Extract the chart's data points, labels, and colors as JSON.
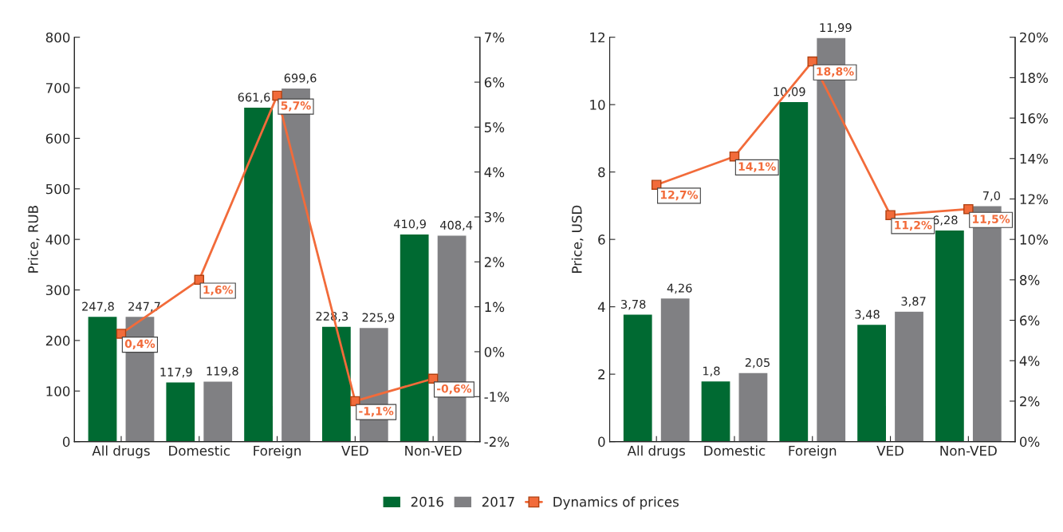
{
  "chart_data": [
    {
      "type": "bar",
      "categories": [
        "All drugs",
        "Domestic",
        "Foreign",
        "VED",
        "Non-VED"
      ],
      "ylabel": "Price, RUB",
      "ylim": [
        0,
        800
      ],
      "yticks": [
        0,
        100,
        200,
        300,
        400,
        500,
        600,
        700,
        800
      ],
      "y2lim": [
        -2,
        7
      ],
      "y2ticks": [
        {
          "value": -2,
          "label": "-2%"
        },
        {
          "value": -1,
          "label": "-1%"
        },
        {
          "value": 0,
          "label": "0%"
        },
        {
          "value": 1,
          "label": "1%"
        },
        {
          "value": 2,
          "label": "2%"
        },
        {
          "value": 3,
          "label": "3%"
        },
        {
          "value": 4,
          "label": "4%"
        },
        {
          "value": 5,
          "label": "5%"
        },
        {
          "value": 6,
          "label": "6%"
        },
        {
          "value": 7,
          "label": "7%"
        }
      ],
      "legend": "bottom",
      "grid": false,
      "series": [
        {
          "name": "2016",
          "color": "#006a32",
          "values": [
            247.8,
            117.9,
            661.6,
            228.3,
            410.9
          ],
          "value_labels": [
            "247,8",
            "117,9",
            "661,6",
            "228,3",
            "410,9"
          ]
        },
        {
          "name": "2017",
          "color": "#808083",
          "values": [
            247.7,
            119.8,
            699.6,
            225.9,
            408.4
          ],
          "value_labels": [
            "247,7",
            "119,8",
            "699,6",
            "225,9",
            "408,4"
          ]
        },
        {
          "name": "Dynamics of prices",
          "type": "line",
          "axis": "y2",
          "color": "#f26b3a",
          "marker": "square",
          "values": [
            0.4,
            1.6,
            5.7,
            -1.1,
            -0.6
          ],
          "value_labels": [
            "0,4%",
            "1,6%",
            "5,7%",
            "-1,1%",
            "-0,6%"
          ]
        }
      ]
    },
    {
      "type": "bar",
      "categories": [
        "All drugs",
        "Domestic",
        "Foreign",
        "VED",
        "Non-VED"
      ],
      "ylabel": "Price, USD",
      "ylim": [
        0,
        12
      ],
      "yticks": [
        0,
        2,
        4,
        6,
        8,
        10,
        12
      ],
      "y2lim": [
        0,
        20
      ],
      "y2ticks": [
        {
          "value": 0,
          "label": "0%"
        },
        {
          "value": 2,
          "label": "2%"
        },
        {
          "value": 4,
          "label": "4%"
        },
        {
          "value": 6,
          "label": "6%"
        },
        {
          "value": 8,
          "label": "8%"
        },
        {
          "value": 10,
          "label": "10%"
        },
        {
          "value": 12,
          "label": "12%"
        },
        {
          "value": 14,
          "label": "14%"
        },
        {
          "value": 16,
          "label": "16%"
        },
        {
          "value": 18,
          "label": "18%"
        },
        {
          "value": 20,
          "label": "20%"
        }
      ],
      "grid": false,
      "series": [
        {
          "color": "#006a32",
          "values": [
            3.78,
            1.8,
            10.09,
            3.48,
            6.28
          ],
          "value_labels": [
            "3,78",
            "1,8",
            "10,09",
            "3,48",
            "6,28"
          ]
        },
        {
          "color": "#808083",
          "values": [
            4.26,
            2.05,
            11.99,
            3.87,
            7.0
          ],
          "value_labels": [
            "4,26",
            "2,05",
            "11,99",
            "3,87",
            "7,0"
          ]
        },
        {
          "type": "line",
          "axis": "y2",
          "color": "#f26b3a",
          "marker": "square",
          "values": [
            12.7,
            14.1,
            18.8,
            11.2,
            11.5
          ],
          "value_labels": [
            "12,7%",
            "14,1%",
            "18,8%",
            "11,2%",
            "11,5%"
          ]
        }
      ]
    }
  ]
}
